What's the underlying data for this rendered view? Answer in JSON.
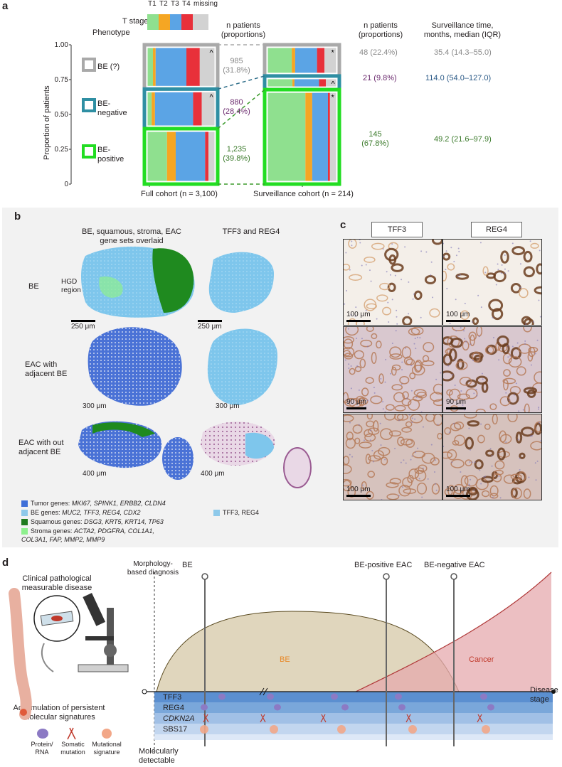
{
  "panel_a": {
    "letter": "a",
    "t_stage_label": "T stage",
    "t_stage_items": [
      {
        "label": "T1",
        "color": "#8fe08f"
      },
      {
        "label": "T2",
        "color": "#f5a623"
      },
      {
        "label": "T3",
        "color": "#5ba4e5"
      },
      {
        "label": "T4",
        "color": "#e8303a"
      },
      {
        "label": "missing",
        "color": "#d2d2d2"
      }
    ],
    "phenotype_label": "Phenotype",
    "col_n_patients": "n patients\n(proportions)",
    "col_n_patients_2": "n patients\n(proportions)",
    "col_surveillance": "Surveillance time,\nmonths, median (IQR)",
    "ylabel": "Proportion of patients",
    "yticks": [
      "1.00",
      "0.75",
      "0.50",
      "0.25",
      "0"
    ],
    "phenotypes": [
      {
        "label": "BE (?)",
        "color": "#a9a9a9"
      },
      {
        "label": "BE-\nnegative",
        "color": "#2f8fa3"
      },
      {
        "label": "BE-\npositive",
        "color": "#22dd22"
      }
    ],
    "full_cohort_label": "Full cohort (n = 3,100)",
    "surveillance_cohort_label": "Surveillance cohort (n = 214)",
    "full_counts": [
      {
        "text": "985\n(31.8%)",
        "color": "#8a8a8a"
      },
      {
        "text": "880\n(28.4%)",
        "color": "#6b2a6e"
      },
      {
        "text": "1,235\n(39.8%)",
        "color": "#3a7a2a"
      }
    ],
    "surv_counts": [
      {
        "text": "48 (22.4%)",
        "color": "#8a8a8a"
      },
      {
        "text": "21 (9.8%)",
        "color": "#6b2a6e"
      },
      {
        "text": "145\n(67.8%)",
        "color": "#3a7a2a"
      }
    ],
    "surv_times": [
      {
        "text": "35.4 (14.3–55.0)",
        "color": "#8a8a8a"
      },
      {
        "text": "114.0 (54.0–127.0)",
        "color": "#2b5a87"
      },
      {
        "text": "49.2 (21.6–97.9)",
        "color": "#3a7a2a"
      }
    ],
    "full_bars": [
      {
        "marker": "^",
        "fractions": [
          0.08,
          0.04,
          0.46,
          0.2,
          0.22
        ]
      },
      {
        "marker": "^",
        "fractions": [
          0.06,
          0.05,
          0.57,
          0.13,
          0.19
        ]
      },
      {
        "marker": "",
        "fractions": [
          0.29,
          0.13,
          0.44,
          0.05,
          0.09
        ]
      }
    ],
    "surv_bars": [
      {
        "marker": "*",
        "fractions": [
          0.35,
          0.05,
          0.32,
          0.11,
          0.17
        ]
      },
      {
        "marker": "^",
        "fractions": [
          0.36,
          0.03,
          0.36,
          0.1,
          0.15
        ]
      },
      {
        "marker": "*",
        "fractions": [
          0.55,
          0.1,
          0.23,
          0.03,
          0.09
        ]
      }
    ]
  },
  "panel_b": {
    "letter": "b",
    "col1": "BE, squamous, stroma, EAC\ngene sets overlaid",
    "col2": "TFF3 and REG4",
    "rows": [
      "BE",
      "EAC with\nadjacent BE",
      "EAC with out\nadjacent BE"
    ],
    "hgd": "HGD\nregion",
    "star": "*",
    "scales": [
      "250 μm",
      "250 μm",
      "300 μm",
      "300 μm",
      "400 μm",
      "400 μm"
    ],
    "legend": [
      {
        "label": "Tumor genes: ",
        "genes": "MKI67, SPINK1, ERBB2, CLDN4",
        "color": "#3e6fd8"
      },
      {
        "label": "BE genes: ",
        "genes": "MUC2, TFF3, REG4, CDX2",
        "color": "#8ec9ea"
      },
      {
        "label": "Squamous genes: ",
        "genes": "DSG3, KRT5, KRT14, TP63",
        "color": "#1f7a1f"
      },
      {
        "label": "Stroma genes: ",
        "genes": "ACTA2, PDGFRA, COL1A1,",
        "color": "#8ef08e"
      },
      {
        "label": "",
        "genes": "COL3A1, FAP, MMP2, MMP9",
        "color": ""
      }
    ],
    "legend2": {
      "label": "TFF3, REG4",
      "color": "#8ec9ea"
    }
  },
  "panel_c": {
    "letter": "c",
    "heads": [
      "TFF3",
      "REG4"
    ],
    "scales": [
      "100 μm",
      "100 μm",
      "90 μm",
      "90 μm",
      "100 μm",
      "100 μm"
    ]
  },
  "panel_d": {
    "letter": "d",
    "morph": "Morphology-\nbased diagnosis",
    "clinical": "Clinical pathological\nmeasurable disease",
    "accum": "Accumulation of persistent\nmolecular signatures",
    "icons": [
      "Protein/\nRNA",
      "Somatic\nmutation",
      "Mutational\nsignature"
    ],
    "molec": "Molecularly\ndetectable",
    "pins": [
      "BE",
      "BE-positive EAC",
      "BE-negative EAC"
    ],
    "be_area": "BE",
    "cancer_area": "Cancer",
    "disease_stage": "Disease\nstage",
    "tracks": [
      "TFF3",
      "REG4",
      "CDKN2A",
      "SBS17"
    ]
  }
}
